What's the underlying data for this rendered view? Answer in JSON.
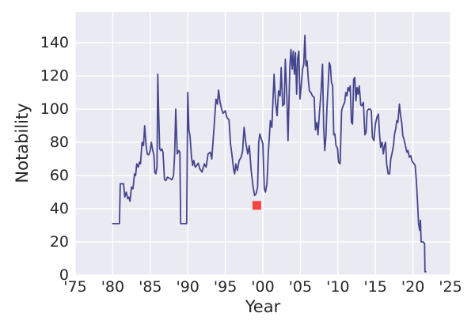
{
  "ui": {
    "xlabel": "Year",
    "ylabel": "Notability"
  },
  "style": {
    "plot_bg": "#eaeaf2",
    "grid_color": "#ffffff",
    "text_color": "#262626",
    "line_color": "#45458d",
    "marker_color": "#f64540",
    "page_bg": "#ffffff"
  },
  "chart_data": {
    "type": "line",
    "title": "",
    "xlabel": "Year",
    "ylabel": "Notability",
    "xlim": [
      1975,
      2025
    ],
    "ylim": [
      0,
      158.6
    ],
    "grid": true,
    "legend_position": "none",
    "xticks": [
      {
        "v": 1975,
        "label": "'75"
      },
      {
        "v": 1980,
        "label": "'80"
      },
      {
        "v": 1985,
        "label": "'85"
      },
      {
        "v": 1990,
        "label": "'90"
      },
      {
        "v": 1995,
        "label": "'95"
      },
      {
        "v": 2000,
        "label": "'00"
      },
      {
        "v": 2005,
        "label": "'05"
      },
      {
        "v": 2010,
        "label": "'10"
      },
      {
        "v": 2015,
        "label": "'15"
      },
      {
        "v": 2020,
        "label": "'20"
      },
      {
        "v": 2025,
        "label": "'25"
      }
    ],
    "yticks": [
      {
        "v": 0,
        "label": "0"
      },
      {
        "v": 20,
        "label": "20"
      },
      {
        "v": 40,
        "label": "40"
      },
      {
        "v": 60,
        "label": "60"
      },
      {
        "v": 80,
        "label": "80"
      },
      {
        "v": 100,
        "label": "100"
      },
      {
        "v": 120,
        "label": "120"
      },
      {
        "v": 140,
        "label": "140"
      }
    ],
    "series": [
      {
        "name": "notability",
        "color": "#45458d",
        "line_width": 1.8,
        "points": [
          [
            1980.0,
            31
          ],
          [
            1980.9,
            31
          ],
          [
            1981.0,
            55
          ],
          [
            1981.45,
            55
          ],
          [
            1981.6,
            47
          ],
          [
            1981.8,
            50
          ],
          [
            1982.0,
            46
          ],
          [
            1982.15,
            47
          ],
          [
            1982.3,
            44.5
          ],
          [
            1982.5,
            53
          ],
          [
            1982.7,
            52
          ],
          [
            1982.9,
            61
          ],
          [
            1983.05,
            60
          ],
          [
            1983.2,
            67
          ],
          [
            1983.4,
            65
          ],
          [
            1983.55,
            68
          ],
          [
            1983.7,
            67
          ],
          [
            1983.9,
            80
          ],
          [
            1984.1,
            78
          ],
          [
            1984.25,
            90
          ],
          [
            1984.45,
            78
          ],
          [
            1984.6,
            73
          ],
          [
            1984.8,
            72.5
          ],
          [
            1985.0,
            75
          ],
          [
            1985.15,
            80
          ],
          [
            1985.3,
            76
          ],
          [
            1985.5,
            72
          ],
          [
            1985.6,
            62
          ],
          [
            1985.75,
            61
          ],
          [
            1985.9,
            65
          ],
          [
            1986.0,
            121
          ],
          [
            1986.1,
            102
          ],
          [
            1986.25,
            76
          ],
          [
            1986.4,
            75
          ],
          [
            1986.55,
            76
          ],
          [
            1986.7,
            74
          ],
          [
            1986.9,
            57.5
          ],
          [
            1987.1,
            57
          ],
          [
            1987.3,
            59
          ],
          [
            1987.5,
            58.5
          ],
          [
            1987.7,
            58
          ],
          [
            1987.9,
            57.5
          ],
          [
            1988.1,
            60
          ],
          [
            1988.25,
            72.5
          ],
          [
            1988.4,
            100
          ],
          [
            1988.6,
            73
          ],
          [
            1988.8,
            75
          ],
          [
            1988.95,
            74
          ],
          [
            1989.05,
            31
          ],
          [
            1989.5,
            31
          ],
          [
            1989.85,
            31
          ],
          [
            1990.0,
            110
          ],
          [
            1990.15,
            87.5
          ],
          [
            1990.3,
            84
          ],
          [
            1990.5,
            71
          ],
          [
            1990.65,
            66
          ],
          [
            1990.8,
            69
          ],
          [
            1991.0,
            65
          ],
          [
            1991.2,
            66
          ],
          [
            1991.4,
            67.5
          ],
          [
            1991.6,
            64
          ],
          [
            1991.9,
            62
          ],
          [
            1992.2,
            67
          ],
          [
            1992.45,
            65
          ],
          [
            1992.7,
            73
          ],
          [
            1993.0,
            74
          ],
          [
            1993.2,
            70
          ],
          [
            1993.5,
            89
          ],
          [
            1993.75,
            106
          ],
          [
            1993.95,
            103
          ],
          [
            1994.1,
            111.5
          ],
          [
            1994.3,
            104
          ],
          [
            1994.5,
            100
          ],
          [
            1994.7,
            97.5
          ],
          [
            1995.0,
            99
          ],
          [
            1995.2,
            95
          ],
          [
            1995.5,
            93.5
          ],
          [
            1995.7,
            79
          ],
          [
            1995.9,
            72
          ],
          [
            1996.1,
            64
          ],
          [
            1996.25,
            61
          ],
          [
            1996.4,
            67
          ],
          [
            1996.6,
            63
          ],
          [
            1996.85,
            69
          ],
          [
            1997.1,
            71
          ],
          [
            1997.3,
            74.5
          ],
          [
            1997.5,
            89
          ],
          [
            1997.75,
            79
          ],
          [
            1998.0,
            73
          ],
          [
            1998.2,
            78
          ],
          [
            1998.45,
            63
          ],
          [
            1998.7,
            53
          ],
          [
            1998.9,
            48
          ],
          [
            1999.1,
            49
          ],
          [
            1999.3,
            53
          ],
          [
            1999.45,
            80
          ],
          [
            1999.6,
            85
          ],
          [
            1999.8,
            82
          ],
          [
            2000.0,
            79
          ],
          [
            2000.2,
            52
          ],
          [
            2000.35,
            50
          ],
          [
            2000.55,
            55
          ],
          [
            2000.75,
            75
          ],
          [
            2001.0,
            93
          ],
          [
            2001.2,
            89
          ],
          [
            2001.5,
            121
          ],
          [
            2001.7,
            104
          ],
          [
            2001.9,
            96
          ],
          [
            2002.1,
            111
          ],
          [
            2002.3,
            108
          ],
          [
            2002.45,
            125
          ],
          [
            2002.65,
            102
          ],
          [
            2002.85,
            103
          ],
          [
            2003.0,
            130
          ],
          [
            2003.2,
            108
          ],
          [
            2003.35,
            81
          ],
          [
            2003.6,
            125
          ],
          [
            2003.75,
            136
          ],
          [
            2003.9,
            124
          ],
          [
            2004.05,
            135
          ],
          [
            2004.2,
            121
          ],
          [
            2004.35,
            134
          ],
          [
            2004.5,
            109
          ],
          [
            2004.65,
            131
          ],
          [
            2004.8,
            135
          ],
          [
            2004.95,
            106
          ],
          [
            2005.1,
            113
          ],
          [
            2005.3,
            124
          ],
          [
            2005.45,
            127
          ],
          [
            2005.6,
            144.5
          ],
          [
            2005.75,
            126
          ],
          [
            2005.9,
            129
          ],
          [
            2006.05,
            118
          ],
          [
            2006.2,
            111
          ],
          [
            2006.4,
            110
          ],
          [
            2006.6,
            108
          ],
          [
            2006.85,
            107
          ],
          [
            2007.0,
            87.5
          ],
          [
            2007.2,
            92
          ],
          [
            2007.35,
            84.5
          ],
          [
            2007.55,
            98.5
          ],
          [
            2007.75,
            110
          ],
          [
            2007.95,
            127
          ],
          [
            2008.1,
            90
          ],
          [
            2008.25,
            75
          ],
          [
            2008.4,
            83
          ],
          [
            2008.55,
            102
          ],
          [
            2008.7,
            114
          ],
          [
            2008.85,
            128
          ],
          [
            2009.0,
            126
          ],
          [
            2009.15,
            116
          ],
          [
            2009.3,
            114
          ],
          [
            2009.45,
            84.5
          ],
          [
            2009.6,
            85
          ],
          [
            2009.75,
            78
          ],
          [
            2009.95,
            76.5
          ],
          [
            2010.1,
            68
          ],
          [
            2010.3,
            67
          ],
          [
            2010.5,
            99
          ],
          [
            2010.7,
            102
          ],
          [
            2010.9,
            104
          ],
          [
            2011.05,
            110
          ],
          [
            2011.2,
            108
          ],
          [
            2011.35,
            113
          ],
          [
            2011.5,
            111
          ],
          [
            2011.65,
            114
          ],
          [
            2011.8,
            92
          ],
          [
            2011.95,
            91
          ],
          [
            2012.1,
            118
          ],
          [
            2012.25,
            119
          ],
          [
            2012.4,
            105
          ],
          [
            2012.55,
            113
          ],
          [
            2012.7,
            109
          ],
          [
            2012.85,
            114
          ],
          [
            2013.05,
            102.5
          ],
          [
            2013.2,
            102
          ],
          [
            2013.4,
            104
          ],
          [
            2013.6,
            84.5
          ],
          [
            2013.75,
            86
          ],
          [
            2013.9,
            99
          ],
          [
            2014.1,
            100
          ],
          [
            2014.3,
            100
          ],
          [
            2014.45,
            99
          ],
          [
            2014.6,
            83
          ],
          [
            2014.8,
            81
          ],
          [
            2015.0,
            91
          ],
          [
            2015.2,
            95
          ],
          [
            2015.4,
            97
          ],
          [
            2015.55,
            85
          ],
          [
            2015.7,
            77
          ],
          [
            2015.9,
            80
          ],
          [
            2016.05,
            73
          ],
          [
            2016.2,
            78
          ],
          [
            2016.35,
            80
          ],
          [
            2016.5,
            67
          ],
          [
            2016.7,
            61
          ],
          [
            2016.9,
            61
          ],
          [
            2017.05,
            70
          ],
          [
            2017.2,
            73
          ],
          [
            2017.4,
            78
          ],
          [
            2017.55,
            85
          ],
          [
            2017.7,
            88
          ],
          [
            2017.85,
            93
          ],
          [
            2018.0,
            92
          ],
          [
            2018.2,
            103
          ],
          [
            2018.35,
            96
          ],
          [
            2018.5,
            92
          ],
          [
            2018.65,
            84
          ],
          [
            2018.8,
            82
          ],
          [
            2019.0,
            78
          ],
          [
            2019.2,
            74
          ],
          [
            2019.35,
            75
          ],
          [
            2019.5,
            71
          ],
          [
            2019.7,
            72
          ],
          [
            2019.85,
            69
          ],
          [
            2020.0,
            68
          ],
          [
            2020.15,
            67
          ],
          [
            2020.3,
            66
          ],
          [
            2020.45,
            57
          ],
          [
            2020.6,
            45
          ],
          [
            2020.75,
            31
          ],
          [
            2020.9,
            27
          ],
          [
            2021.0,
            33
          ],
          [
            2021.1,
            20
          ],
          [
            2021.35,
            20
          ],
          [
            2021.55,
            19
          ],
          [
            2021.6,
            2
          ],
          [
            2021.72,
            2
          ]
        ]
      }
    ],
    "annotations": [
      {
        "name": "minimum-marker",
        "shape": "square",
        "color": "#f64540",
        "x": 1999.2,
        "y": 42,
        "size": 11
      }
    ]
  }
}
